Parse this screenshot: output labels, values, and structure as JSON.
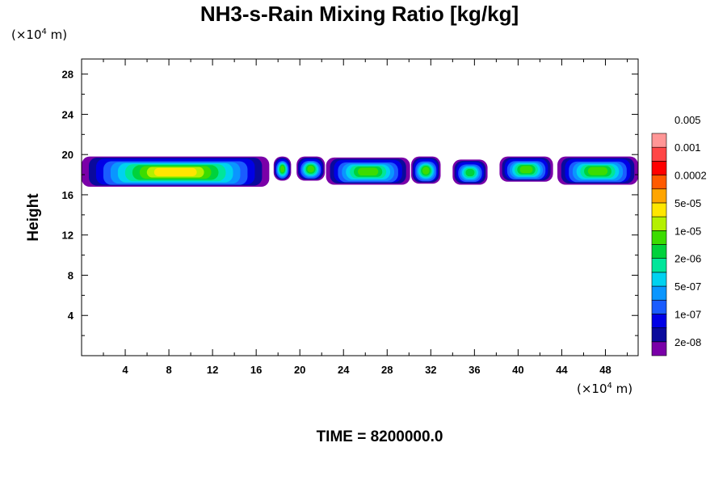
{
  "chart_data": {
    "type": "heatmap",
    "title": "NH3-s-Rain Mixing Ratio [kg/kg]",
    "ylabel": "Height",
    "x_unit": {
      "prefix": "(×10",
      "exp": "4",
      "suffix": " m)"
    },
    "y_unit": {
      "prefix": "(×10",
      "exp": "4",
      "suffix": " m)"
    },
    "xlim": [
      0,
      51
    ],
    "ylim": [
      0,
      29.5
    ],
    "xticks": [
      4,
      8,
      12,
      16,
      20,
      24,
      28,
      32,
      36,
      40,
      44,
      48
    ],
    "yticks": [
      4,
      8,
      12,
      16,
      20,
      24,
      28
    ],
    "colorbar": {
      "colors": [
        "#7a00a8",
        "#0a0a9c",
        "#0000e6",
        "#1a5cff",
        "#0a96ff",
        "#00d2f0",
        "#00e69a",
        "#00d23c",
        "#3cdc00",
        "#b4f000",
        "#ffe600",
        "#ffa500",
        "#ff5a00",
        "#ff0000",
        "#ff4646",
        "#ff9696"
      ],
      "labels": [
        "2e-08",
        "1e-07",
        "5e-07",
        "2e-06",
        "1e-05",
        "5e-05",
        "0.0002",
        "0.001",
        "0.005"
      ]
    },
    "cloud_segments": [
      {
        "x": [
          0,
          17.2
        ],
        "y": [
          16.8,
          19.8
        ],
        "peak_level": 10
      },
      {
        "x": [
          17.6,
          19.2
        ],
        "y": [
          17.4,
          19.8
        ],
        "peak_level": 8
      },
      {
        "x": [
          19.7,
          22.3
        ],
        "y": [
          17.4,
          19.8
        ],
        "peak_level": 8
      },
      {
        "x": [
          22.4,
          30.1
        ],
        "y": [
          17.0,
          19.7
        ],
        "peak_level": 8
      },
      {
        "x": [
          30.2,
          32.9
        ],
        "y": [
          17.1,
          19.8
        ],
        "peak_level": 8
      },
      {
        "x": [
          34.0,
          37.2
        ],
        "y": [
          17.0,
          19.5
        ],
        "peak_level": 7
      },
      {
        "x": [
          38.3,
          43.2
        ],
        "y": [
          17.3,
          19.8
        ],
        "peak_level": 8
      },
      {
        "x": [
          43.6,
          51.0
        ],
        "y": [
          17.0,
          19.8
        ],
        "peak_level": 8
      }
    ]
  },
  "footer": "TIME = 8200000.0"
}
